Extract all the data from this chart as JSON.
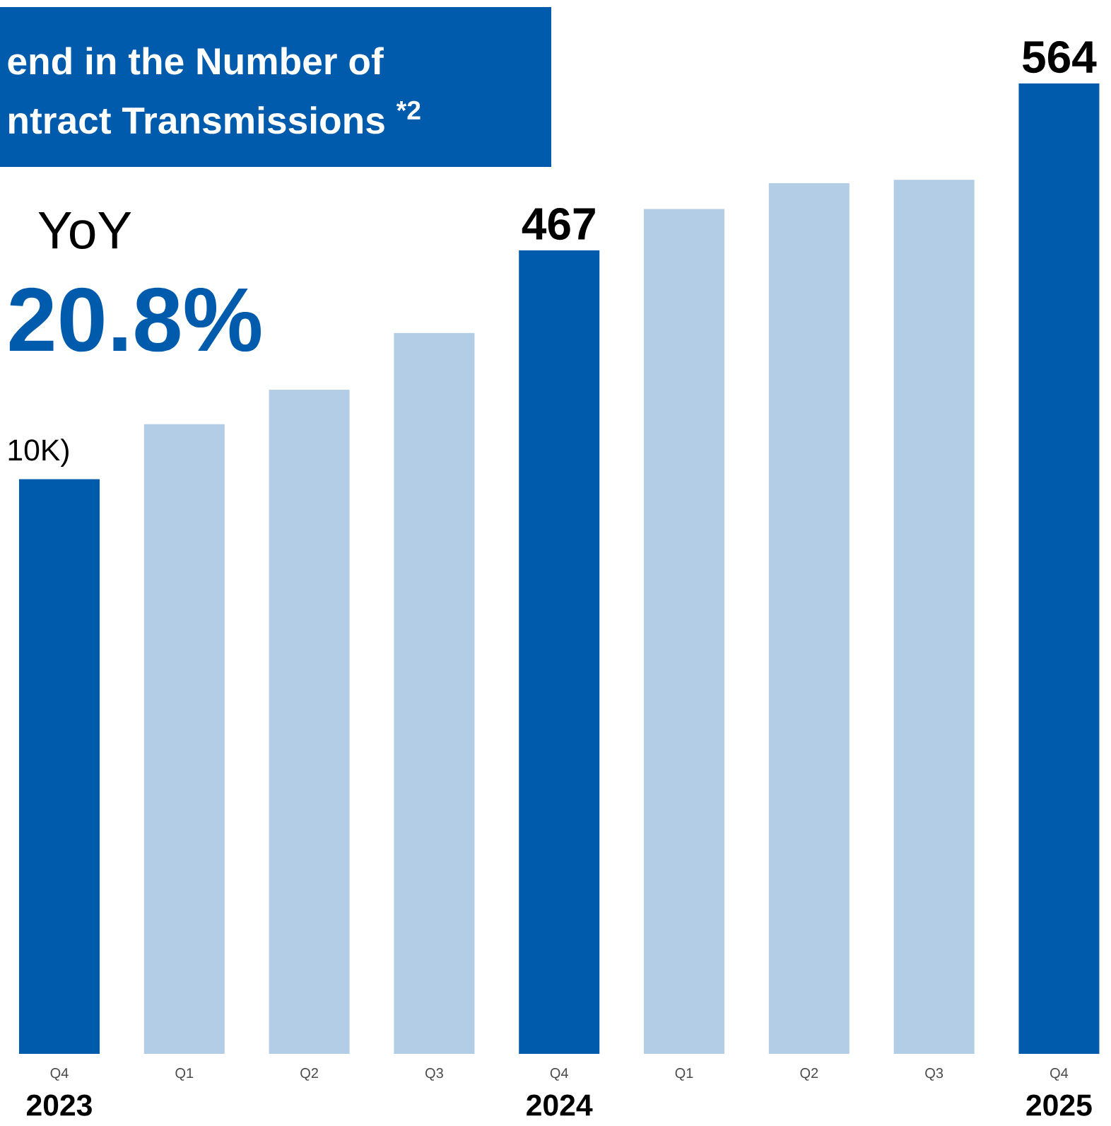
{
  "chart_data": {
    "type": "bar",
    "title": "end in the Number of",
    "subtitle": "ntract Transmissions $^{*2}$",
    "categories": [
      "Q4",
      "Q1",
      "Q2",
      "Q3",
      "Q4",
      "Q1",
      "Q2",
      "Q3",
      "Q4"
    ],
    "values": [
      334,
      366,
      386,
      419,
      467,
      491,
      506,
      508,
      564
    ],
    "colors": [
      "#005bac",
      "#b3cde6",
      "#b3cde6",
      "#b3cde6",
      "#005bac",
      "#b3cde6",
      "#b3cde6",
      "#b3cde6",
      "#005bac"
    ],
    "value_labels": [
      null,
      null,
      null,
      null,
      "467",
      null,
      null,
      null,
      "564"
    ],
    "annotations": [
      "2023",
      "2024",
      "2025",
      "YoY",
      "20.8%",
      "10K)"
    ]
  }
}
